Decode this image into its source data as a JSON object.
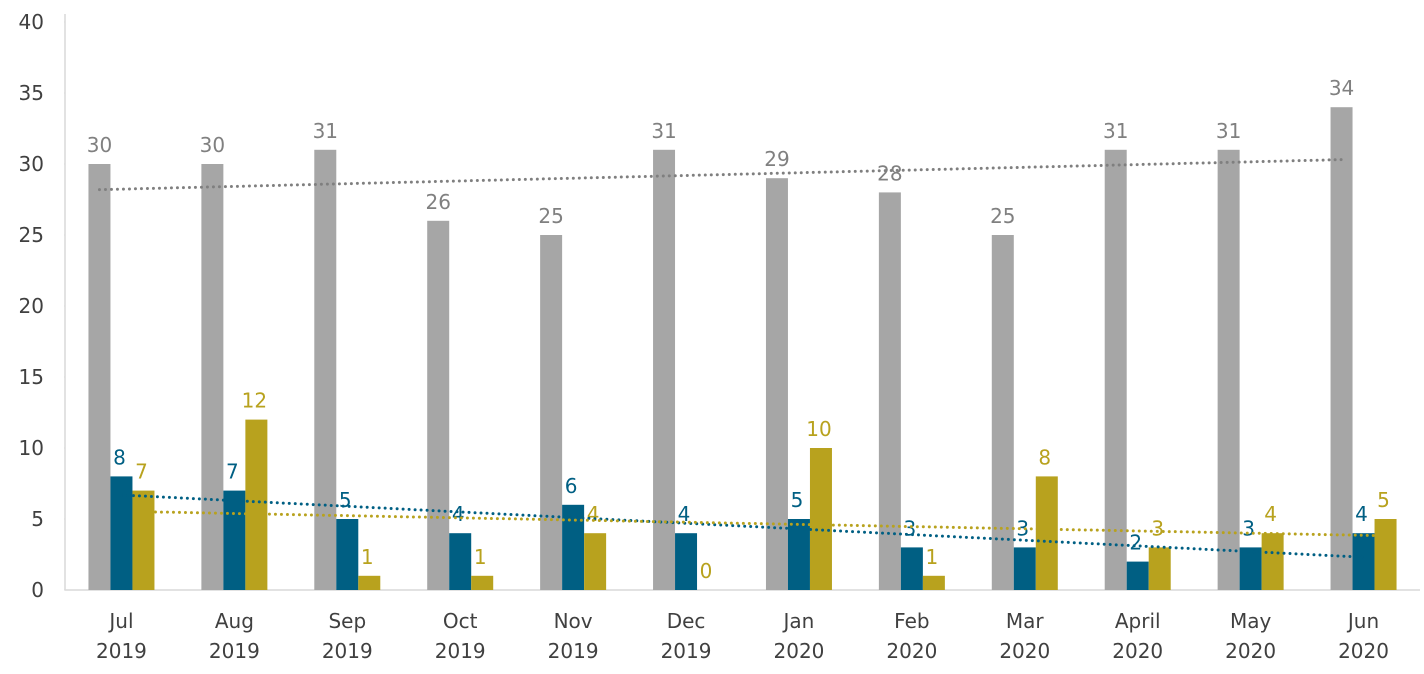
{
  "chart_data": {
    "type": "bar",
    "categories": [
      "Jul 2019",
      "Aug 2019",
      "Sep 2019",
      "Oct 2019",
      "Nov 2019",
      "Dec 2019",
      "Jan 2020",
      "Feb 2020",
      "Mar 2020",
      "April 2020",
      "May 2020",
      "Jun 2020"
    ],
    "series": [
      {
        "color": "#a6a6a6",
        "label_color": "#808080",
        "trend_color": "#7f7f7f",
        "values": [
          30,
          30,
          31,
          26,
          25,
          31,
          29,
          28,
          25,
          31,
          31,
          34
        ]
      },
      {
        "color": "#005f83",
        "label_color": "#005f83",
        "trend_color": "#005f83",
        "values": [
          8,
          7,
          5,
          4,
          6,
          4,
          5,
          3,
          3,
          2,
          3,
          4
        ]
      },
      {
        "color": "#b8a21e",
        "label_color": "#b8a21e",
        "trend_color": "#b8a21e",
        "values": [
          7,
          12,
          1,
          1,
          4,
          0,
          10,
          1,
          8,
          3,
          4,
          5
        ]
      }
    ],
    "ylim": [
      0,
      40
    ],
    "yticks": [
      0,
      5,
      10,
      15,
      20,
      25,
      30,
      35,
      40
    ],
    "grid": false,
    "trendline": true,
    "data_labels": true
  }
}
